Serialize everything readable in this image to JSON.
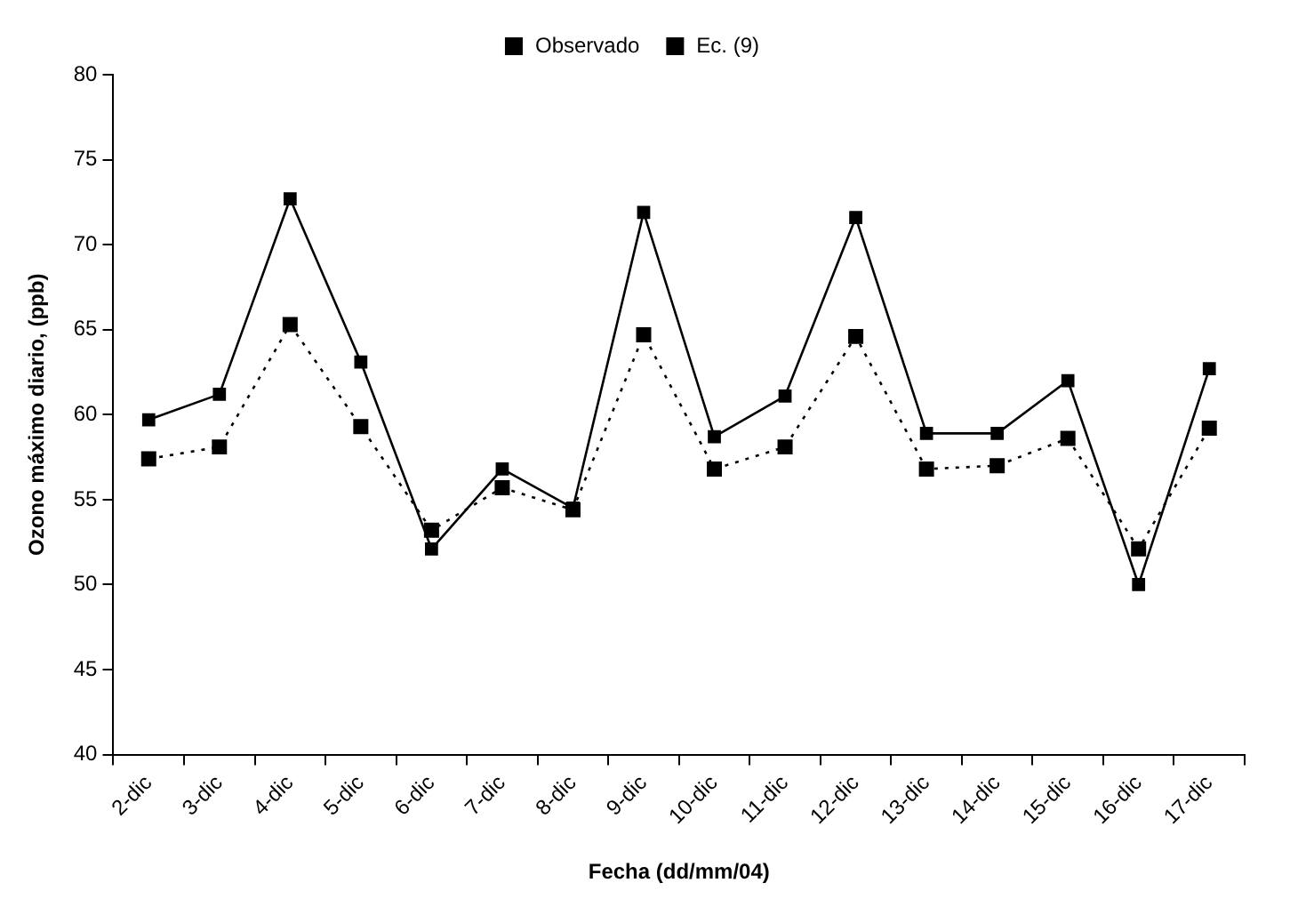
{
  "chart_data": {
    "type": "line",
    "xlabel": "Fecha (dd/mm/04)",
    "ylabel": "Ozono máximo diario, (ppb)",
    "categories": [
      "2-dic",
      "3-dic",
      "4-dic",
      "5-dic",
      "6-dic",
      "7-dic",
      "8-dic",
      "9-dic",
      "10-dic",
      "11-dic",
      "12-dic",
      "13-dic",
      "14-dic",
      "15-dic",
      "16-dic",
      "17-dic"
    ],
    "series": [
      {
        "name": "Observado",
        "color": "#000000",
        "line_style": "solid",
        "values": [
          59.7,
          61.2,
          72.7,
          63.1,
          52.1,
          56.8,
          54.5,
          71.9,
          58.7,
          61.1,
          71.6,
          58.9,
          58.9,
          62.0,
          50.0,
          62.7
        ]
      },
      {
        "name": "Ec. (9)",
        "color": "#000000",
        "line_style": "dotted",
        "values": [
          57.4,
          58.1,
          65.3,
          59.3,
          53.2,
          55.7,
          54.4,
          64.7,
          56.8,
          58.1,
          64.6,
          56.8,
          57.0,
          58.6,
          52.1,
          59.2
        ]
      }
    ],
    "ylim": [
      40,
      80
    ],
    "yticks": [
      40,
      45,
      50,
      55,
      60,
      65,
      70,
      75,
      80
    ],
    "grid": false,
    "legend": "top",
    "marker": "square"
  }
}
